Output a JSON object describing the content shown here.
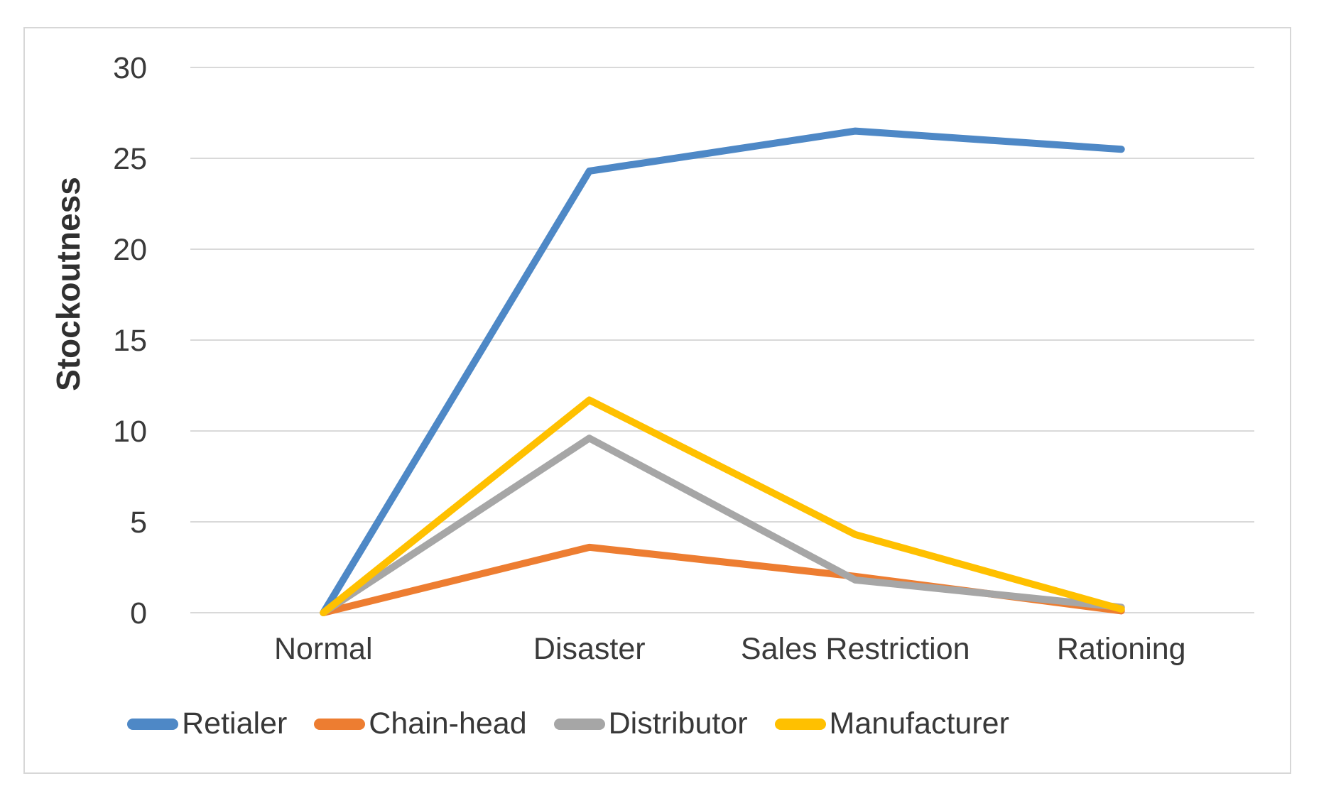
{
  "figure": {
    "background": "#ffffff",
    "border_color": "#d7d7d7"
  },
  "chart_data": {
    "type": "line",
    "title": "",
    "xlabel": "",
    "ylabel": "Stockoutness",
    "categories": [
      "Normal",
      "Disaster",
      "Sales Restriction",
      "Rationing"
    ],
    "series": [
      {
        "name": "Retialer",
        "color": "#4E88C6",
        "values": [
          0,
          24.3,
          26.5,
          25.5
        ]
      },
      {
        "name": "Chain-head",
        "color": "#ED7D31",
        "values": [
          0,
          3.6,
          2.0,
          0.1
        ]
      },
      {
        "name": "Distributor",
        "color": "#A6A6A6",
        "values": [
          0,
          9.6,
          1.8,
          0.3
        ]
      },
      {
        "name": "Manufacturer",
        "color": "#FFC000",
        "values": [
          0,
          11.7,
          4.3,
          0.2
        ]
      }
    ],
    "ylim": [
      0,
      30
    ],
    "yticks": [
      0,
      5,
      10,
      15,
      20,
      25,
      30
    ],
    "grid": "horizontal",
    "gridline_color": "#d9d9d9",
    "text_color": "#3a3a3a",
    "line_width": 10,
    "legend_position": "bottom"
  }
}
